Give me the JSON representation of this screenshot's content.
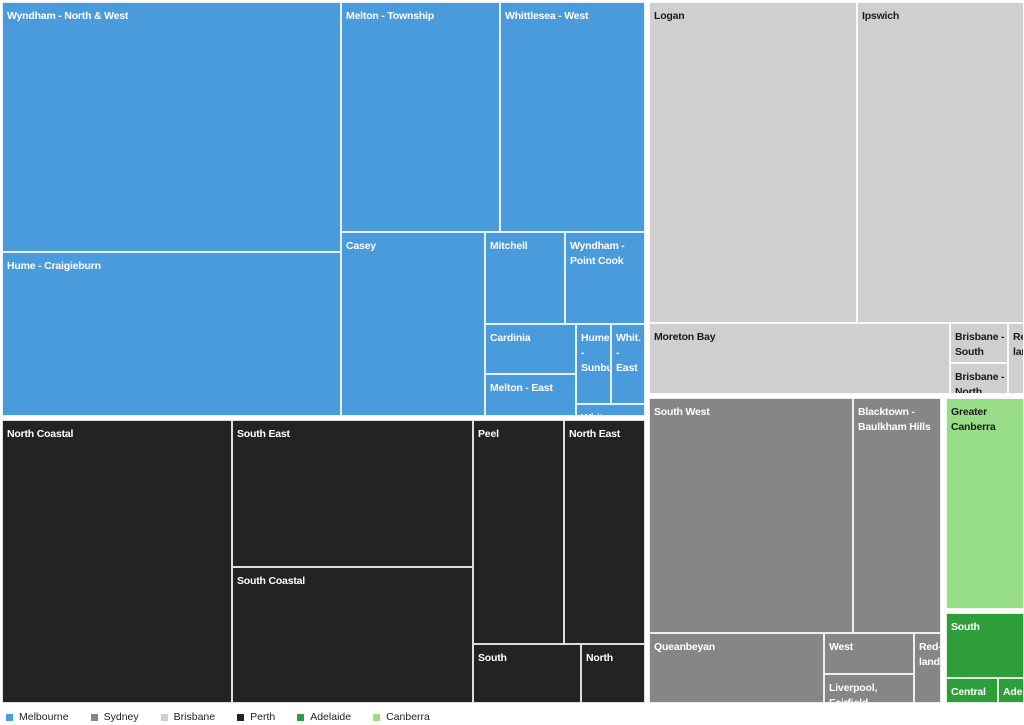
{
  "chart_data": {
    "type": "treemap",
    "groups": [
      {
        "name": "Melbourne",
        "color": "#4a9bdc",
        "text": "dark",
        "items": [
          {
            "label": "Wyndham - North & West",
            "value": 16.2
          },
          {
            "label": "Hume - Craigieburn",
            "value": 10.2
          },
          {
            "label": "Melton - Township",
            "value": 7.4
          },
          {
            "label": "Whittlesea - West",
            "value": 6.8
          },
          {
            "label": "Casey",
            "value": 5.4
          },
          {
            "label": "Mitchell",
            "value": 2.0
          },
          {
            "label": "Wyndham - Point Cook",
            "value": 1.9
          },
          {
            "label": "Cardinia",
            "value": 1.1
          },
          {
            "label": "Melton - East",
            "value": 1.0
          },
          {
            "label": "Hume - Sunbury",
            "value": 0.6
          },
          {
            "label": "Whit. - East",
            "value": 0.5
          },
          {
            "label": "Whit. Township",
            "value": 0.3
          }
        ]
      },
      {
        "name": "Perth",
        "color": "#232323",
        "text": "dark",
        "items": [
          {
            "label": "North Coastal",
            "value": 12.4
          },
          {
            "label": "South East",
            "value": 7.9
          },
          {
            "label": "South Coastal",
            "value": 7.9
          },
          {
            "label": "Peel",
            "value": 4.2
          },
          {
            "label": "North East",
            "value": 3.6
          },
          {
            "label": "South",
            "value": 1.5
          },
          {
            "label": "North",
            "value": 1.1
          }
        ]
      },
      {
        "name": "Brisbane",
        "color": "#cfcfcf",
        "text": "light",
        "items": [
          {
            "label": "Logan",
            "value": 10.2
          },
          {
            "label": "Ipswich",
            "value": 8.3
          },
          {
            "label": "Moreton Bay",
            "value": 3.2
          },
          {
            "label": "Brisbane - South",
            "value": 0.4
          },
          {
            "label": "Brisbane - North",
            "value": 0.3
          },
          {
            "label": "Red-land",
            "value": 0.3
          }
        ]
      },
      {
        "name": "Sydney",
        "color": "#868686",
        "text": "dark",
        "items": [
          {
            "label": "South West",
            "value": 6.2
          },
          {
            "label": "Blacktown - Baulkham Hills",
            "value": 2.5
          },
          {
            "label": "Queanbeyan",
            "value": 1.4
          },
          {
            "label": "West",
            "value": 0.9
          },
          {
            "label": "Liverpool, Fairfield, Holroyd",
            "value": 0.5
          },
          {
            "label": "Red-land",
            "value": 0.5
          }
        ]
      },
      {
        "name": "Canberra",
        "color": "#98dd87",
        "text": "light",
        "items": [
          {
            "label": "Greater Canberra",
            "value": 2.0
          }
        ]
      },
      {
        "name": "Adelaide",
        "color": "#2e9e3a",
        "text": "dark",
        "items": [
          {
            "label": "South",
            "value": 0.45
          },
          {
            "label": "Central",
            "value": 0.25
          },
          {
            "label": "Ade laid e Hil",
            "value": 0.12
          }
        ]
      }
    ],
    "legend": {
      "placement": "bottom-left",
      "entries": [
        {
          "name": "Melbourne",
          "color": "#4a9bdc"
        },
        {
          "name": "Sydney",
          "color": "#868686"
        },
        {
          "name": "Brisbane",
          "color": "#cfcfcf"
        },
        {
          "name": "Perth",
          "color": "#232323"
        },
        {
          "name": "Adelaide",
          "color": "#2e9e3a"
        },
        {
          "name": "Canberra",
          "color": "#98dd87"
        }
      ]
    }
  }
}
